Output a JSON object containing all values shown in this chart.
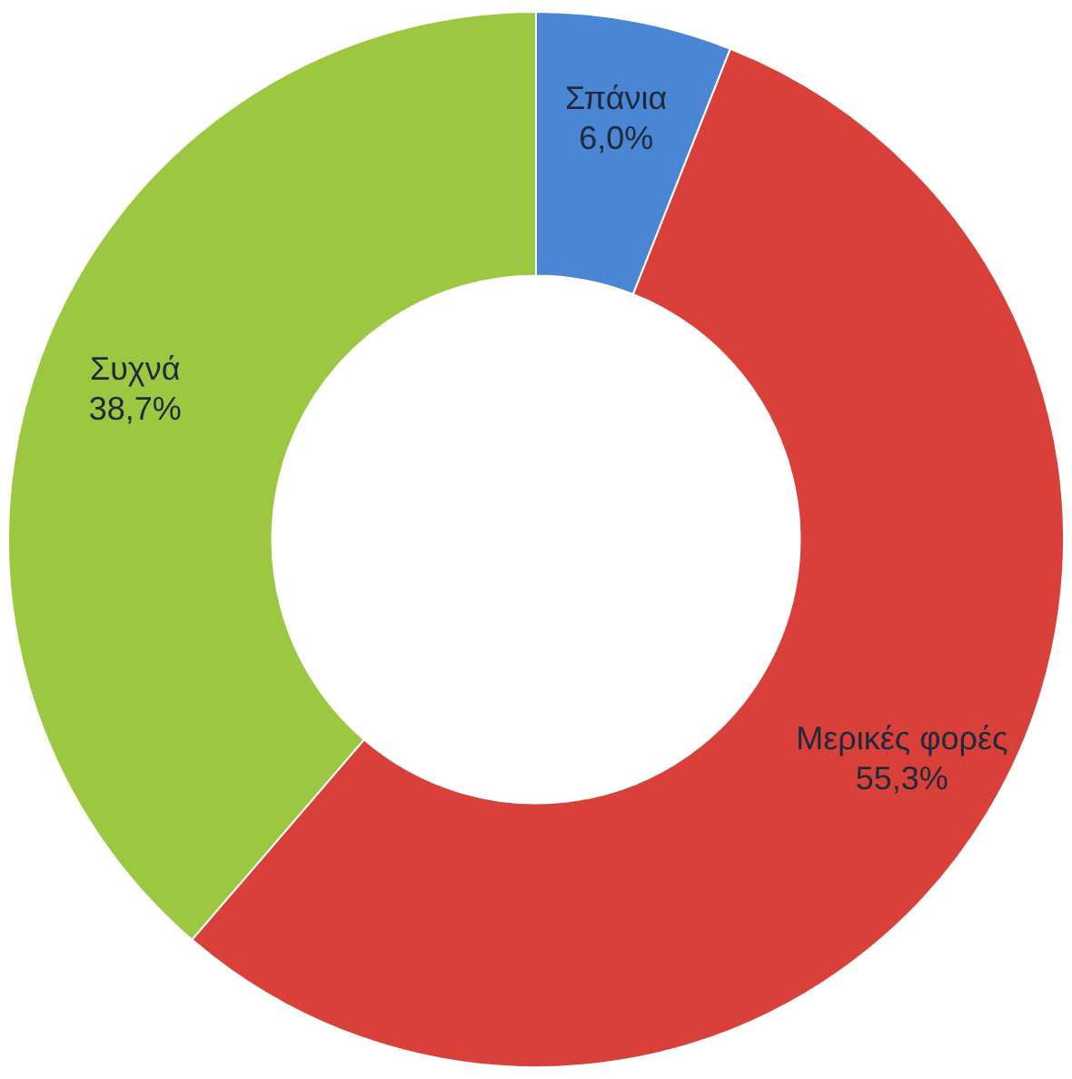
{
  "chart_data": {
    "type": "donut",
    "categories": [
      "Σπάνια",
      "Μερικές φορές",
      "Συχνά"
    ],
    "values": [
      6.0,
      55.3,
      38.7
    ],
    "colors": [
      "#4a86d4",
      "#d9403a",
      "#9bc840"
    ],
    "value_labels": [
      "6,0%",
      "55,3%",
      "38,7%"
    ],
    "legend": false
  }
}
